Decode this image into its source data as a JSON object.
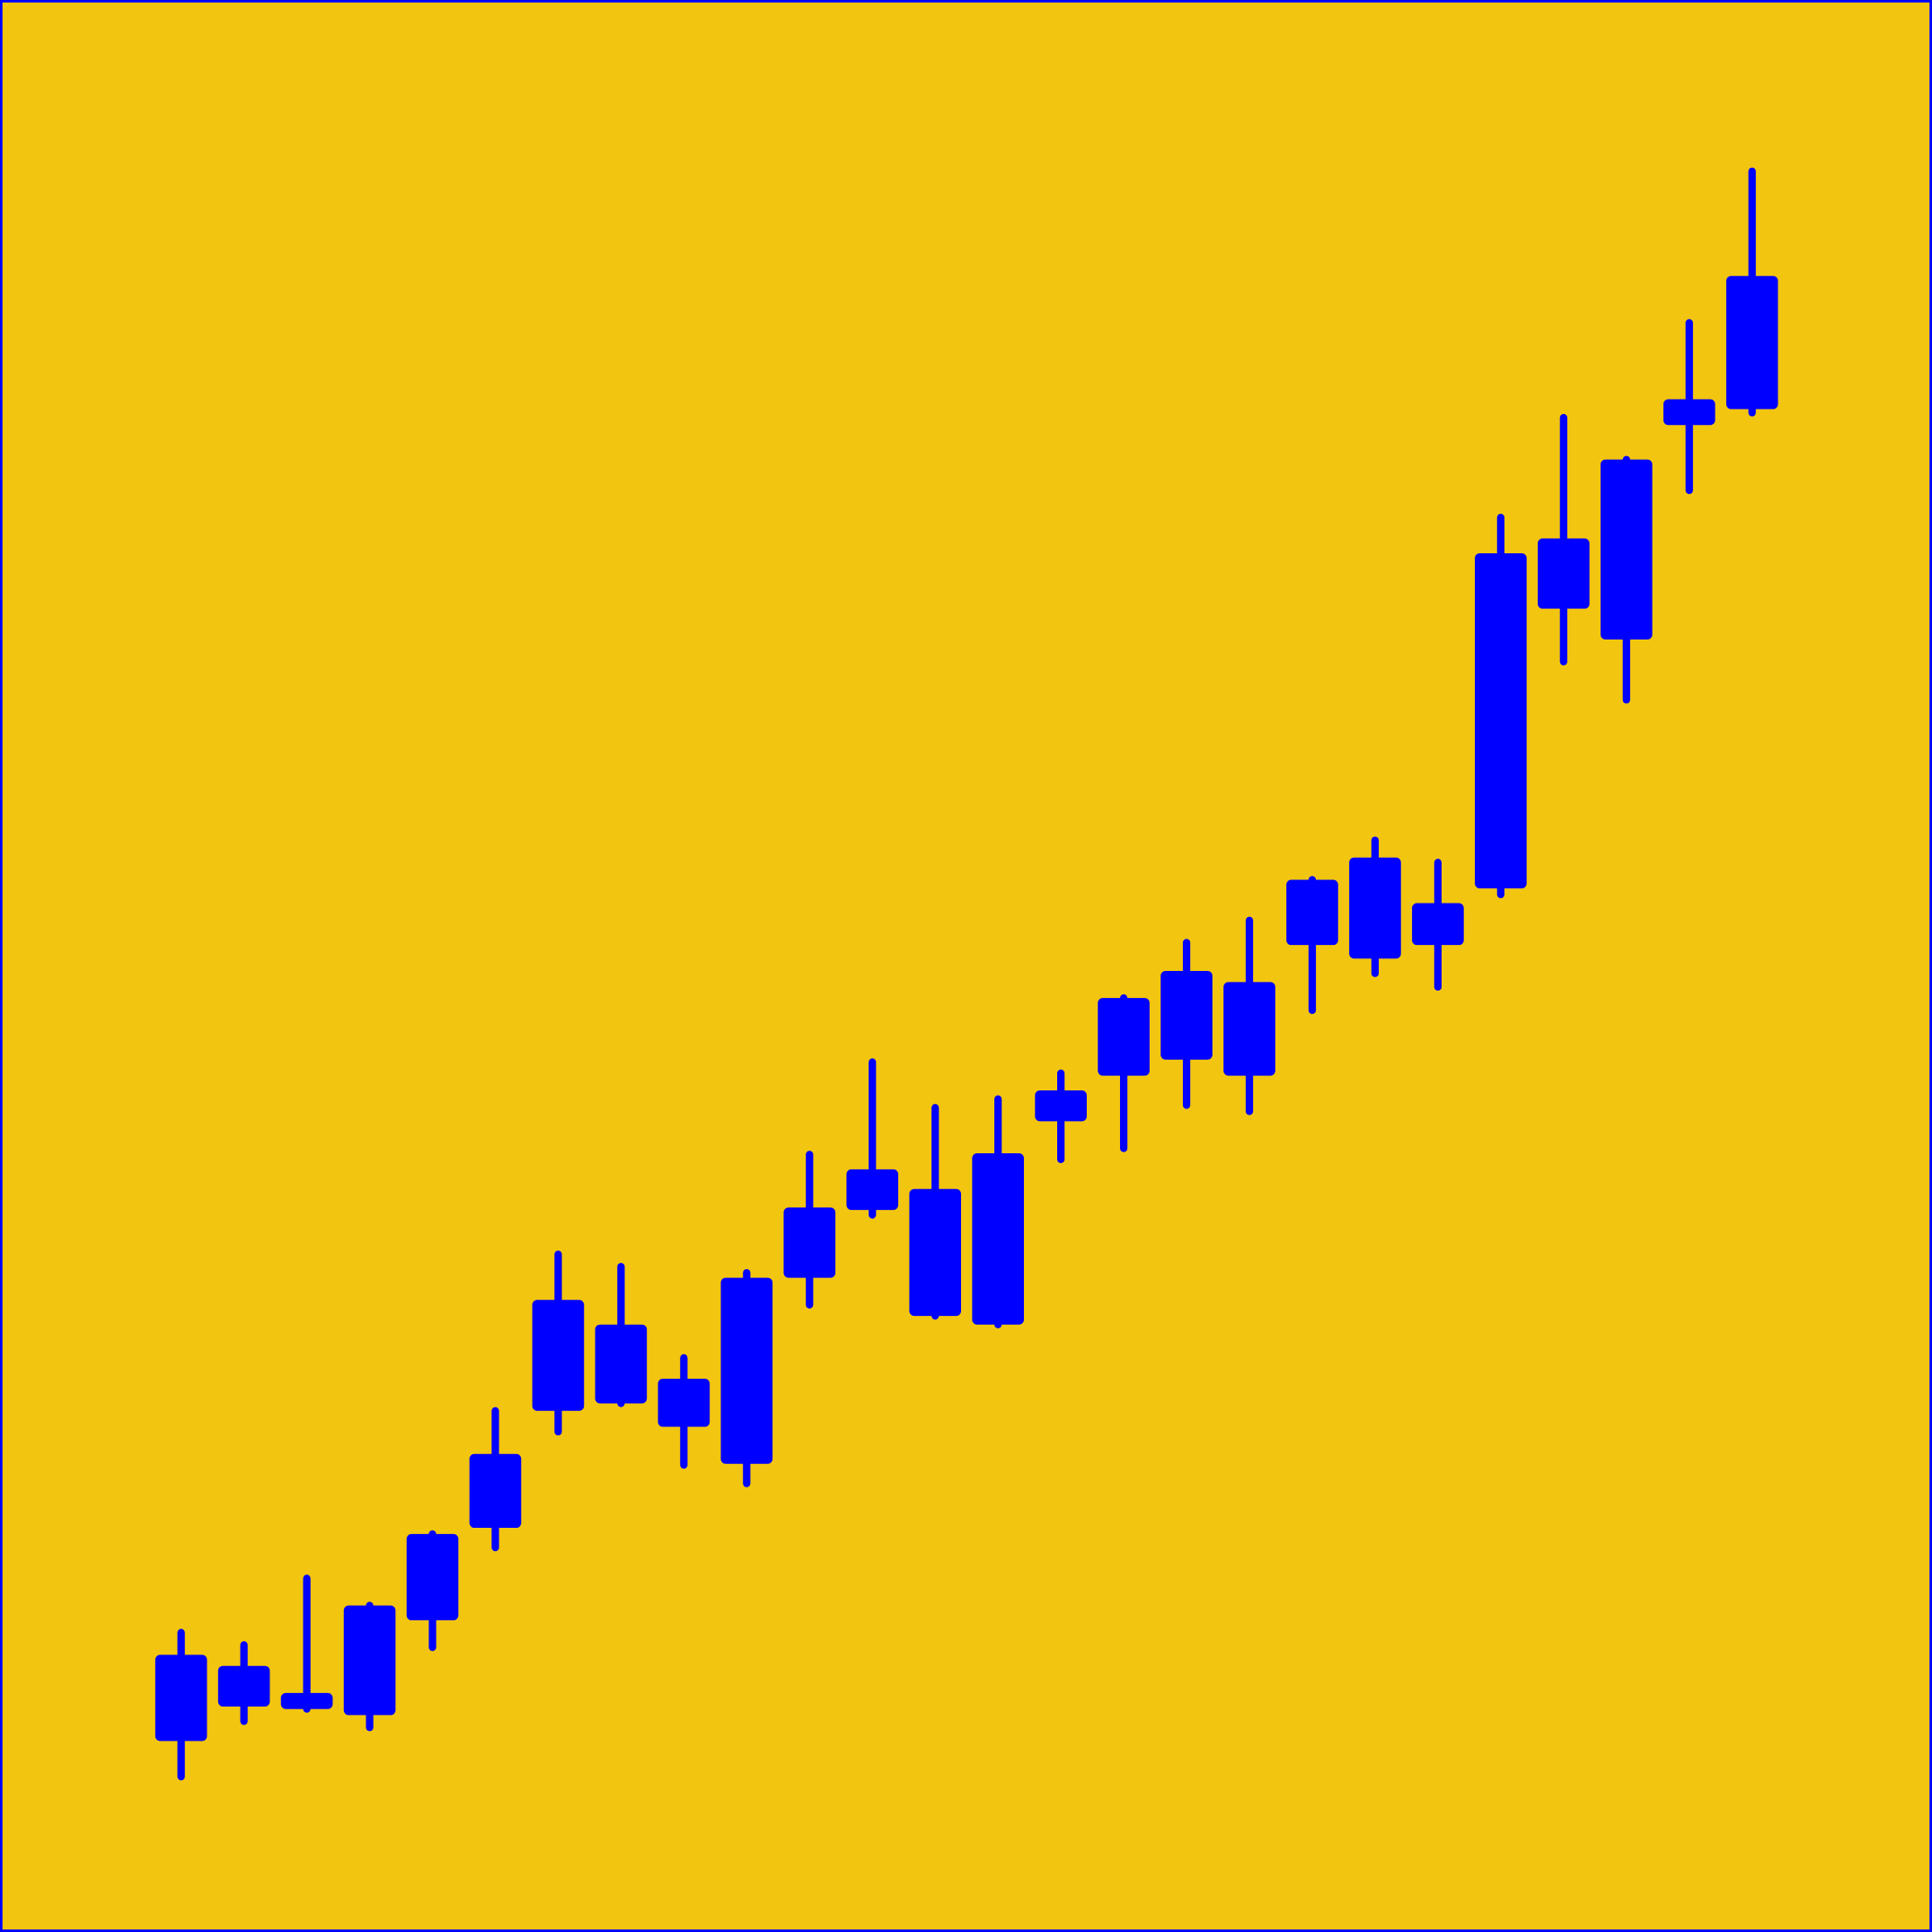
{
  "chart_data": {
    "type": "candlestick",
    "color": "#0000ff",
    "background": "#f2c511",
    "categories": [
      null,
      null,
      null,
      null,
      null,
      null,
      null,
      null,
      null,
      null,
      null,
      null,
      null,
      null,
      null,
      null,
      null,
      null,
      null,
      null,
      null,
      null,
      null,
      null,
      null,
      null
    ],
    "open": [
      155,
      183,
      181,
      176,
      253,
      328,
      423,
      429,
      410,
      380,
      531,
      586,
      500,
      493,
      658,
      695,
      708,
      695,
      801,
      790,
      801,
      847,
      1074,
      1049,
      1223,
      1236
    ],
    "high": [
      243,
      233,
      287,
      265,
      323,
      423,
      550,
      540,
      466,
      535,
      631,
      706,
      669,
      676,
      697,
      758,
      803,
      821,
      854,
      886,
      868,
      1148,
      1229,
      1195,
      1306,
      1429
    ],
    "low": [
      126,
      171,
      181,
      166,
      231,
      312,
      406,
      429,
      379,
      364,
      509,
      582,
      500,
      493,
      627,
      636,
      671,
      666,
      748,
      778,
      767,
      842,
      1031,
      1000,
      1170,
      1233
    ],
    "close": [
      225,
      216,
      194,
      265,
      323,
      388,
      513,
      493,
      449,
      531,
      588,
      619,
      603,
      632,
      683,
      758,
      780,
      771,
      854,
      872,
      835,
      1119,
      1131,
      1195,
      1244,
      1344
    ],
    "ylim": [
      0,
      1568
    ]
  }
}
